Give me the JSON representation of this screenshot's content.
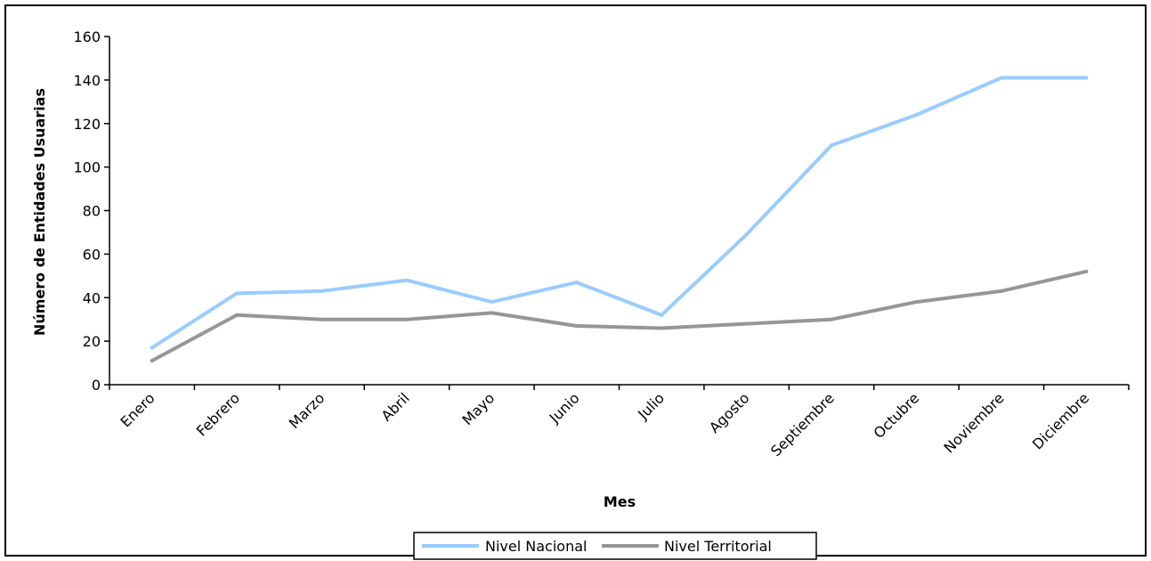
{
  "chart_data": {
    "type": "line",
    "categories": [
      "Enero",
      "Febrero",
      "Marzo",
      "Abril",
      "Mayo",
      "Junio",
      "Julio",
      "Agosto",
      "Septiembre",
      "Octubre",
      "Noviembre",
      "Diciembre"
    ],
    "series": [
      {
        "name": "Nivel Nacional",
        "color": "#99ccff",
        "values": [
          17,
          42,
          43,
          48,
          38,
          47,
          32,
          69,
          110,
          124,
          141,
          141
        ]
      },
      {
        "name": "Nivel Territorial",
        "color": "#969696",
        "values": [
          11,
          32,
          30,
          30,
          33,
          27,
          26,
          28,
          30,
          38,
          43,
          52
        ]
      }
    ],
    "xlabel": "Mes",
    "ylabel": "Número de Entidades Usuarias",
    "ylim": [
      0,
      160
    ],
    "yticks": [
      0,
      20,
      40,
      60,
      80,
      100,
      120,
      140,
      160
    ],
    "grid": false,
    "legend_position": "bottom"
  }
}
